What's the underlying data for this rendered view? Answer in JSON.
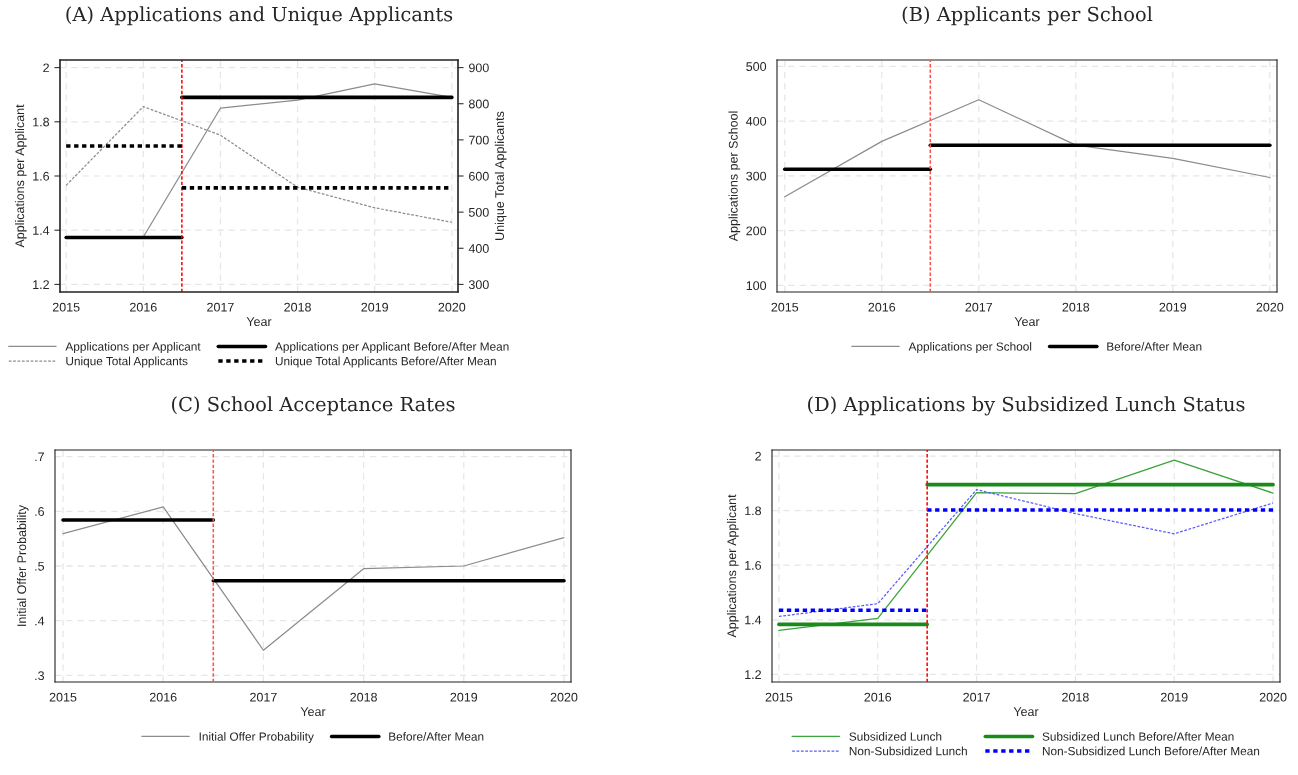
{
  "chart_data": [
    {
      "type": "line",
      "title": "(A) Applications and Unique Applicants",
      "xlabel": "Year",
      "ylabel": "Applications per Applicant",
      "y2label": "Unique Total Applicants",
      "x": [
        2015,
        2016,
        2017,
        2018,
        2019,
        2020
      ],
      "xlim": [
        2014.92,
        2020.08
      ],
      "xticks": [
        2015,
        2016,
        2017,
        2018,
        2019,
        2020
      ],
      "ylim": [
        1.172,
        2.028
      ],
      "yticks": [
        {
          "value": 1.2,
          "label": "1.2"
        },
        {
          "value": 1.4,
          "label": "1.4"
        },
        {
          "value": 1.6,
          "label": "1.6"
        },
        {
          "value": 1.8,
          "label": "1.8"
        },
        2
      ],
      "y2lim": [
        279,
        921
      ],
      "y2ticks": [
        300,
        400,
        500,
        600,
        700,
        800,
        900
      ],
      "grid": true,
      "legend": "bottom",
      "ref_lines": [
        {
          "axis": "x",
          "value": 2016.5,
          "color": "#ff0000",
          "line_style": "dashed"
        }
      ],
      "series": [
        {
          "name": "Applications per Applicant",
          "color": "#8c8c8c",
          "line_style": "solid",
          "values": [
            1.37,
            1.375,
            1.85,
            1.88,
            1.94,
            1.89
          ]
        },
        {
          "name": "Unique Total Applicants",
          "color": "#8c8c8c",
          "line_style": "dashed",
          "axis": "y2",
          "values": [
            574,
            792,
            713,
            569,
            512,
            472
          ]
        },
        {
          "name": "Applications per Applicant Before/After Mean",
          "color": "#000000",
          "line_style": "solid",
          "x": [
            2015,
            2016.5
          ],
          "values": [
            1.373,
            1.373
          ]
        },
        {
          "name": "Unique Total Applicants Before/After Mean",
          "color": "#000000",
          "line_style": "dotted",
          "axis": "y2",
          "x": [
            2015,
            2016.5
          ],
          "values": [
            683,
            683
          ]
        },
        {
          "color": "#000000",
          "line_style": "solid",
          "x": [
            2016.5,
            2020
          ],
          "values": [
            1.89,
            1.89
          ]
        },
        {
          "color": "#000000",
          "line_style": "dotted",
          "axis": "y2",
          "x": [
            2016.5,
            2020
          ],
          "values": [
            567,
            567
          ]
        }
      ]
    },
    {
      "type": "line",
      "title": "(B) Applicants per School",
      "xlabel": "Year",
      "ylabel": "Applications per School",
      "x": [
        2015,
        2016,
        2017,
        2018,
        2019,
        2020
      ],
      "xlim": [
        2014.92,
        2020.074
      ],
      "xticks": [
        2015,
        2016,
        2017,
        2018,
        2019,
        2020
      ],
      "ylim": [
        88,
        511.5
      ],
      "yticks": [
        100,
        200,
        300,
        400,
        500
      ],
      "grid": true,
      "legend": "bottom",
      "ref_lines": [
        {
          "axis": "x",
          "value": 2016.5,
          "color": "#ff5050",
          "line_style": "dashed"
        }
      ],
      "series": [
        {
          "name": "Applications per School",
          "color": "#8c8c8c",
          "line_style": "solid",
          "values": [
            262,
            363,
            439,
            356,
            332,
            297
          ]
        },
        {
          "name": "Before/After Mean",
          "color": "#000000",
          "line_style": "solid",
          "x": [
            2015,
            2016.5
          ],
          "values": [
            312,
            312
          ]
        },
        {
          "color": "#000000",
          "line_style": "solid",
          "x": [
            2016.5,
            2020
          ],
          "values": [
            356,
            356
          ]
        }
      ]
    },
    {
      "type": "line",
      "title": "(C) School Acceptance Rates",
      "xlabel": "Year",
      "ylabel": "Initial Offer Probability",
      "x": [
        2015,
        2016,
        2017,
        2018,
        2019,
        2020
      ],
      "xlim": [
        2014.92,
        2020.07
      ],
      "xticks": [
        2015,
        2016,
        2017,
        2018,
        2019,
        2020
      ],
      "ylim": [
        0.288,
        0.712
      ],
      "yticks": [
        {
          "value": 0.3,
          "label": ".3"
        },
        {
          "value": 0.4,
          "label": ".4"
        },
        {
          "value": 0.5,
          "label": ".5"
        },
        {
          "value": 0.6,
          "label": ".6"
        },
        {
          "value": 0.7,
          "label": ".7"
        }
      ],
      "grid": true,
      "legend": "bottom",
      "ref_lines": [
        {
          "axis": "x",
          "value": 2016.5,
          "color": "#ff5050",
          "line_style": "dashed"
        }
      ],
      "series": [
        {
          "name": "Initial Offer Probability",
          "color": "#8c8c8c",
          "line_style": "solid",
          "values": [
            0.559,
            0.608,
            0.346,
            0.495,
            0.5,
            0.552
          ]
        },
        {
          "name": "Before/After Mean",
          "color": "#000000",
          "line_style": "solid",
          "x": [
            2015,
            2016.5
          ],
          "values": [
            0.584,
            0.584
          ]
        },
        {
          "color": "#000000",
          "line_style": "solid",
          "x": [
            2016.5,
            2020
          ],
          "values": [
            0.473,
            0.473
          ]
        }
      ]
    },
    {
      "type": "line",
      "title": "(D) Applications by Subsidized Lunch Status",
      "xlabel": "Year",
      "ylabel": "Applications per Applicant",
      "x": [
        2015,
        2016,
        2017,
        2018,
        2019,
        2020
      ],
      "xlim": [
        2014.93,
        2020.07
      ],
      "xticks": [
        2015,
        2016,
        2017,
        2018,
        2019,
        2020
      ],
      "ylim": [
        1.172,
        2.022
      ],
      "yticks": [
        {
          "value": 1.2,
          "label": "1.2"
        },
        {
          "value": 1.4,
          "label": "1.4"
        },
        {
          "value": 1.6,
          "label": "1.6"
        },
        {
          "value": 1.8,
          "label": "1.8"
        },
        2
      ],
      "grid": true,
      "legend": "bottom",
      "ref_lines": [
        {
          "axis": "x",
          "value": 2016.5,
          "color": "#ff0000",
          "line_style": "dashed"
        }
      ],
      "series": [
        {
          "name": "Subsidized Lunch",
          "color": "#3aa33a",
          "line_style": "solid",
          "values": [
            1.361,
            1.405,
            1.866,
            1.862,
            1.985,
            1.864
          ]
        },
        {
          "name": "Non-Subsidized Lunch",
          "color": "#5a5aff",
          "line_style": "dashed",
          "values": [
            1.412,
            1.459,
            1.877,
            1.789,
            1.715,
            1.828
          ]
        },
        {
          "name": "Subsidized Lunch Before/After Mean",
          "color": "#1a8a1a",
          "line_style": "solid",
          "x": [
            2015,
            2016.5
          ],
          "values": [
            1.383,
            1.383
          ]
        },
        {
          "name": "Non-Subsidized Lunch Before/After Mean",
          "color": "#0000ff",
          "line_style": "dotted",
          "x": [
            2015,
            2016.5
          ],
          "values": [
            1.435,
            1.435
          ]
        },
        {
          "color": "#1a8a1a",
          "line_style": "solid",
          "x": [
            2016.5,
            2020
          ],
          "values": [
            1.895,
            1.895
          ]
        },
        {
          "color": "#0000ff",
          "line_style": "dotted",
          "x": [
            2016.5,
            2020
          ],
          "values": [
            1.802,
            1.802
          ]
        }
      ]
    }
  ]
}
